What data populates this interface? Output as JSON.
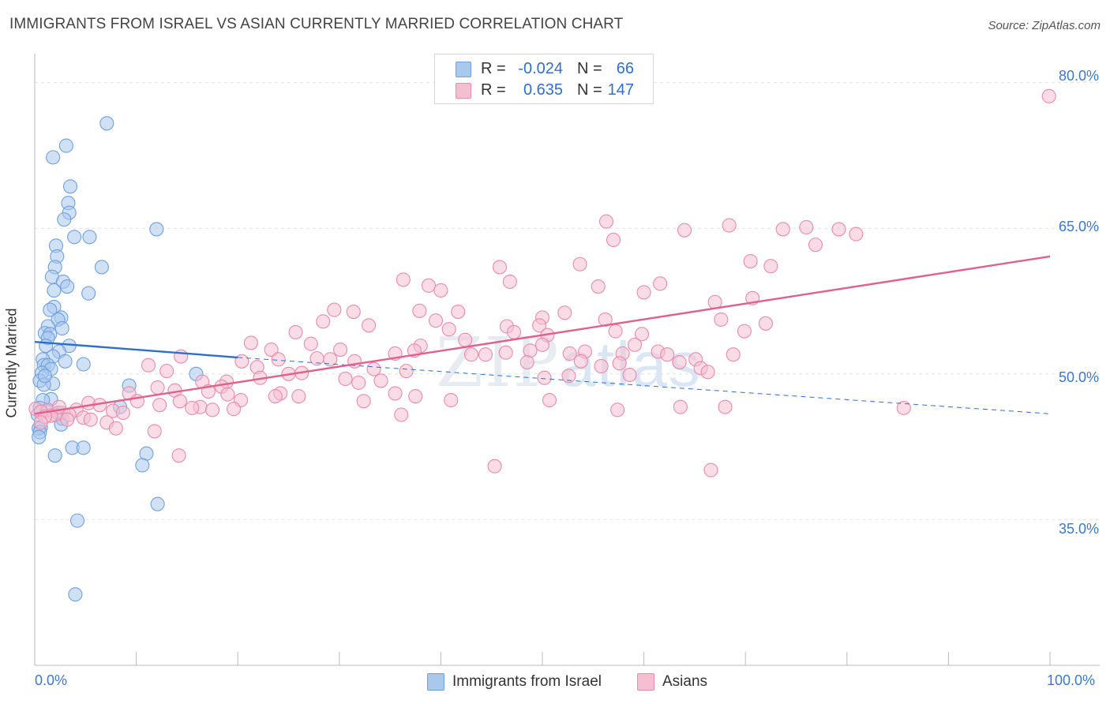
{
  "title": "IMMIGRANTS FROM ISRAEL VS ASIAN CURRENTLY MARRIED CORRELATION CHART",
  "source": "Source: ZipAtlas.com",
  "watermark_zip": "ZIP",
  "watermark_atlas": "atlas",
  "legend": {
    "rows": [
      {
        "r_label": "R =",
        "r_value": "-0.024",
        "n_label": "N =",
        "n_value": "66"
      },
      {
        "r_label": "R =",
        "r_value": "0.635",
        "n_label": "N =",
        "n_value": "147"
      }
    ]
  },
  "bottom_legend": [
    "Immigrants from Israel",
    "Asians"
  ],
  "colors": {
    "blue_fill": "#aac8ee",
    "blue_stroke": "#6fa0dc",
    "blue_line": "#2e6fcc",
    "pink_fill": "#f6bfd1",
    "pink_stroke": "#e98bab",
    "pink_line": "#e0608e",
    "grid": "#e3e3e3",
    "tick_text": "#3b78d0"
  },
  "chart_data": {
    "type": "scatter",
    "title": "IMMIGRANTS FROM ISRAEL VS ASIAN CURRENTLY MARRIED CORRELATION CHART",
    "xlabel": "",
    "ylabel": "Currently Married",
    "xlim": [
      0,
      100
    ],
    "ylim": [
      20,
      82
    ],
    "x_tick_labels": [
      "0.0%",
      "100.0%"
    ],
    "y_ticks": [
      35,
      50,
      65,
      80
    ],
    "y_tick_labels": [
      "35.0%",
      "50.0%",
      "65.0%",
      "80.0%"
    ],
    "grid": true,
    "legend_position": "top-center",
    "series": [
      {
        "name": "Immigrants from Israel",
        "r": -0.024,
        "n": 66,
        "trend": {
          "x": [
            0,
            20
          ],
          "y": [
            53.3,
            51.7
          ],
          "dashed_extension": {
            "x": [
              20,
              100
            ],
            "y": [
              51.7,
              45.9
            ]
          }
        },
        "points": [
          [
            7.1,
            75.8
          ],
          [
            3.1,
            73.5
          ],
          [
            1.8,
            72.3
          ],
          [
            3.5,
            69.3
          ],
          [
            3.3,
            67.6
          ],
          [
            3.4,
            66.6
          ],
          [
            2.9,
            65.9
          ],
          [
            12.0,
            64.9
          ],
          [
            3.9,
            64.1
          ],
          [
            5.4,
            64.1
          ],
          [
            2.1,
            63.2
          ],
          [
            2.2,
            62.1
          ],
          [
            6.6,
            61.0
          ],
          [
            2.0,
            61.0
          ],
          [
            1.7,
            60.0
          ],
          [
            2.8,
            59.5
          ],
          [
            3.2,
            59.0
          ],
          [
            1.9,
            58.6
          ],
          [
            5.3,
            58.3
          ],
          [
            1.9,
            56.9
          ],
          [
            1.5,
            56.6
          ],
          [
            2.6,
            55.8
          ],
          [
            2.3,
            55.6
          ],
          [
            1.3,
            54.9
          ],
          [
            2.7,
            54.7
          ],
          [
            1.0,
            54.2
          ],
          [
            1.5,
            54.1
          ],
          [
            1.3,
            53.7
          ],
          [
            3.4,
            52.9
          ],
          [
            1.1,
            52.9
          ],
          [
            2.4,
            52.3
          ],
          [
            1.8,
            51.8
          ],
          [
            0.8,
            51.5
          ],
          [
            3.0,
            51.3
          ],
          [
            4.8,
            51.0
          ],
          [
            0.9,
            50.9
          ],
          [
            1.3,
            50.9
          ],
          [
            1.6,
            50.5
          ],
          [
            0.7,
            50.1
          ],
          [
            0.5,
            49.3
          ],
          [
            1.8,
            49.0
          ],
          [
            0.9,
            48.9
          ],
          [
            1.6,
            47.4
          ],
          [
            0.8,
            47.3
          ],
          [
            8.4,
            46.6
          ],
          [
            0.5,
            46.5
          ],
          [
            1.2,
            46.2
          ],
          [
            2.3,
            46.0
          ],
          [
            0.3,
            45.8
          ],
          [
            2.7,
            45.4
          ],
          [
            0.6,
            44.5
          ],
          [
            2.6,
            44.8
          ],
          [
            0.4,
            44.4
          ],
          [
            0.5,
            44.0
          ],
          [
            0.4,
            43.5
          ],
          [
            3.7,
            42.4
          ],
          [
            4.8,
            42.4
          ],
          [
            11.0,
            41.8
          ],
          [
            2.0,
            41.6
          ],
          [
            10.6,
            40.6
          ],
          [
            12.1,
            36.6
          ],
          [
            4.2,
            34.9
          ],
          [
            4.0,
            27.3
          ],
          [
            15.9,
            50.0
          ],
          [
            9.3,
            48.8
          ],
          [
            1.0,
            49.8
          ]
        ]
      },
      {
        "name": "Asians",
        "r": 0.635,
        "n": 147,
        "trend": {
          "x": [
            0,
            100
          ],
          "y": [
            45.9,
            62.1
          ]
        },
        "points": [
          [
            99.9,
            78.6
          ],
          [
            56.3,
            65.7
          ],
          [
            68.4,
            65.3
          ],
          [
            64.0,
            64.8
          ],
          [
            73.7,
            64.9
          ],
          [
            76.0,
            65.1
          ],
          [
            79.2,
            64.9
          ],
          [
            80.9,
            64.4
          ],
          [
            57.0,
            63.8
          ],
          [
            76.9,
            63.3
          ],
          [
            53.7,
            61.3
          ],
          [
            70.5,
            61.6
          ],
          [
            72.5,
            61.1
          ],
          [
            45.8,
            61.0
          ],
          [
            36.3,
            59.7
          ],
          [
            46.8,
            59.5
          ],
          [
            61.6,
            59.3
          ],
          [
            55.5,
            59.0
          ],
          [
            38.8,
            59.1
          ],
          [
            40.0,
            58.6
          ],
          [
            60.0,
            58.4
          ],
          [
            70.7,
            57.8
          ],
          [
            67.0,
            57.4
          ],
          [
            29.5,
            56.6
          ],
          [
            31.4,
            56.4
          ],
          [
            52.2,
            56.3
          ],
          [
            37.9,
            56.5
          ],
          [
            41.7,
            56.4
          ],
          [
            28.4,
            55.4
          ],
          [
            50.0,
            55.8
          ],
          [
            39.5,
            55.5
          ],
          [
            67.6,
            55.6
          ],
          [
            56.2,
            55.6
          ],
          [
            49.7,
            55.0
          ],
          [
            32.9,
            55.0
          ],
          [
            46.5,
            54.9
          ],
          [
            72.0,
            55.2
          ],
          [
            69.9,
            54.4
          ],
          [
            57.2,
            54.4
          ],
          [
            50.5,
            54.0
          ],
          [
            25.7,
            54.3
          ],
          [
            47.2,
            54.3
          ],
          [
            40.8,
            54.6
          ],
          [
            59.8,
            54.1
          ],
          [
            42.4,
            53.5
          ],
          [
            21.3,
            53.2
          ],
          [
            27.2,
            53.1
          ],
          [
            50.0,
            53.0
          ],
          [
            59.1,
            53.0
          ],
          [
            38.0,
            52.9
          ],
          [
            23.3,
            52.5
          ],
          [
            30.1,
            52.5
          ],
          [
            37.4,
            52.4
          ],
          [
            48.8,
            52.4
          ],
          [
            54.2,
            52.3
          ],
          [
            61.4,
            52.3
          ],
          [
            46.4,
            52.2
          ],
          [
            35.5,
            52.1
          ],
          [
            44.4,
            52.0
          ],
          [
            52.7,
            52.1
          ],
          [
            57.9,
            52.1
          ],
          [
            62.3,
            52.0
          ],
          [
            43.0,
            52.0
          ],
          [
            68.8,
            52.0
          ],
          [
            14.4,
            51.8
          ],
          [
            27.8,
            51.6
          ],
          [
            29.1,
            51.5
          ],
          [
            24.0,
            51.5
          ],
          [
            20.4,
            51.3
          ],
          [
            31.5,
            51.3
          ],
          [
            48.5,
            51.2
          ],
          [
            53.8,
            51.3
          ],
          [
            65.1,
            51.5
          ],
          [
            63.5,
            51.2
          ],
          [
            57.6,
            51.1
          ],
          [
            11.2,
            50.9
          ],
          [
            55.8,
            50.8
          ],
          [
            65.6,
            50.6
          ],
          [
            66.3,
            50.2
          ],
          [
            36.6,
            50.3
          ],
          [
            33.4,
            50.5
          ],
          [
            21.9,
            50.7
          ],
          [
            26.3,
            50.1
          ],
          [
            13.0,
            50.3
          ],
          [
            25.0,
            50.0
          ],
          [
            58.6,
            49.9
          ],
          [
            52.6,
            49.8
          ],
          [
            50.2,
            49.6
          ],
          [
            22.2,
            49.6
          ],
          [
            30.6,
            49.5
          ],
          [
            34.1,
            49.3
          ],
          [
            16.5,
            49.2
          ],
          [
            18.9,
            49.2
          ],
          [
            31.9,
            49.1
          ],
          [
            18.4,
            48.7
          ],
          [
            12.1,
            48.6
          ],
          [
            17.1,
            48.2
          ],
          [
            24.2,
            48.0
          ],
          [
            35.5,
            48.0
          ],
          [
            19.0,
            47.9
          ],
          [
            13.8,
            48.3
          ],
          [
            9.3,
            48.0
          ],
          [
            23.7,
            47.7
          ],
          [
            26.0,
            47.7
          ],
          [
            14.3,
            47.2
          ],
          [
            32.4,
            47.2
          ],
          [
            10.1,
            47.2
          ],
          [
            20.3,
            47.3
          ],
          [
            5.3,
            47.0
          ],
          [
            12.3,
            46.8
          ],
          [
            6.4,
            46.8
          ],
          [
            16.3,
            46.6
          ],
          [
            15.5,
            46.5
          ],
          [
            19.6,
            46.4
          ],
          [
            17.5,
            46.3
          ],
          [
            4.1,
            46.3
          ],
          [
            7.7,
            46.2
          ],
          [
            2.6,
            46.0
          ],
          [
            0.1,
            46.4
          ],
          [
            1.3,
            46.3
          ],
          [
            8.7,
            46.0
          ],
          [
            2.0,
            45.8
          ],
          [
            3.4,
            45.8
          ],
          [
            4.8,
            45.5
          ],
          [
            1.6,
            45.7
          ],
          [
            3.2,
            45.3
          ],
          [
            0.6,
            46.1
          ],
          [
            1.0,
            45.6
          ],
          [
            2.4,
            46.6
          ],
          [
            0.6,
            45.0
          ],
          [
            7.1,
            45.0
          ],
          [
            5.5,
            45.3
          ],
          [
            11.8,
            44.1
          ],
          [
            8.0,
            44.4
          ],
          [
            36.1,
            45.8
          ],
          [
            41.0,
            47.3
          ],
          [
            50.7,
            47.3
          ],
          [
            57.4,
            46.3
          ],
          [
            63.6,
            46.6
          ],
          [
            68.0,
            46.6
          ],
          [
            85.6,
            46.5
          ],
          [
            14.2,
            41.6
          ],
          [
            45.3,
            40.5
          ],
          [
            66.6,
            40.1
          ],
          [
            37.5,
            47.7
          ]
        ]
      }
    ]
  }
}
